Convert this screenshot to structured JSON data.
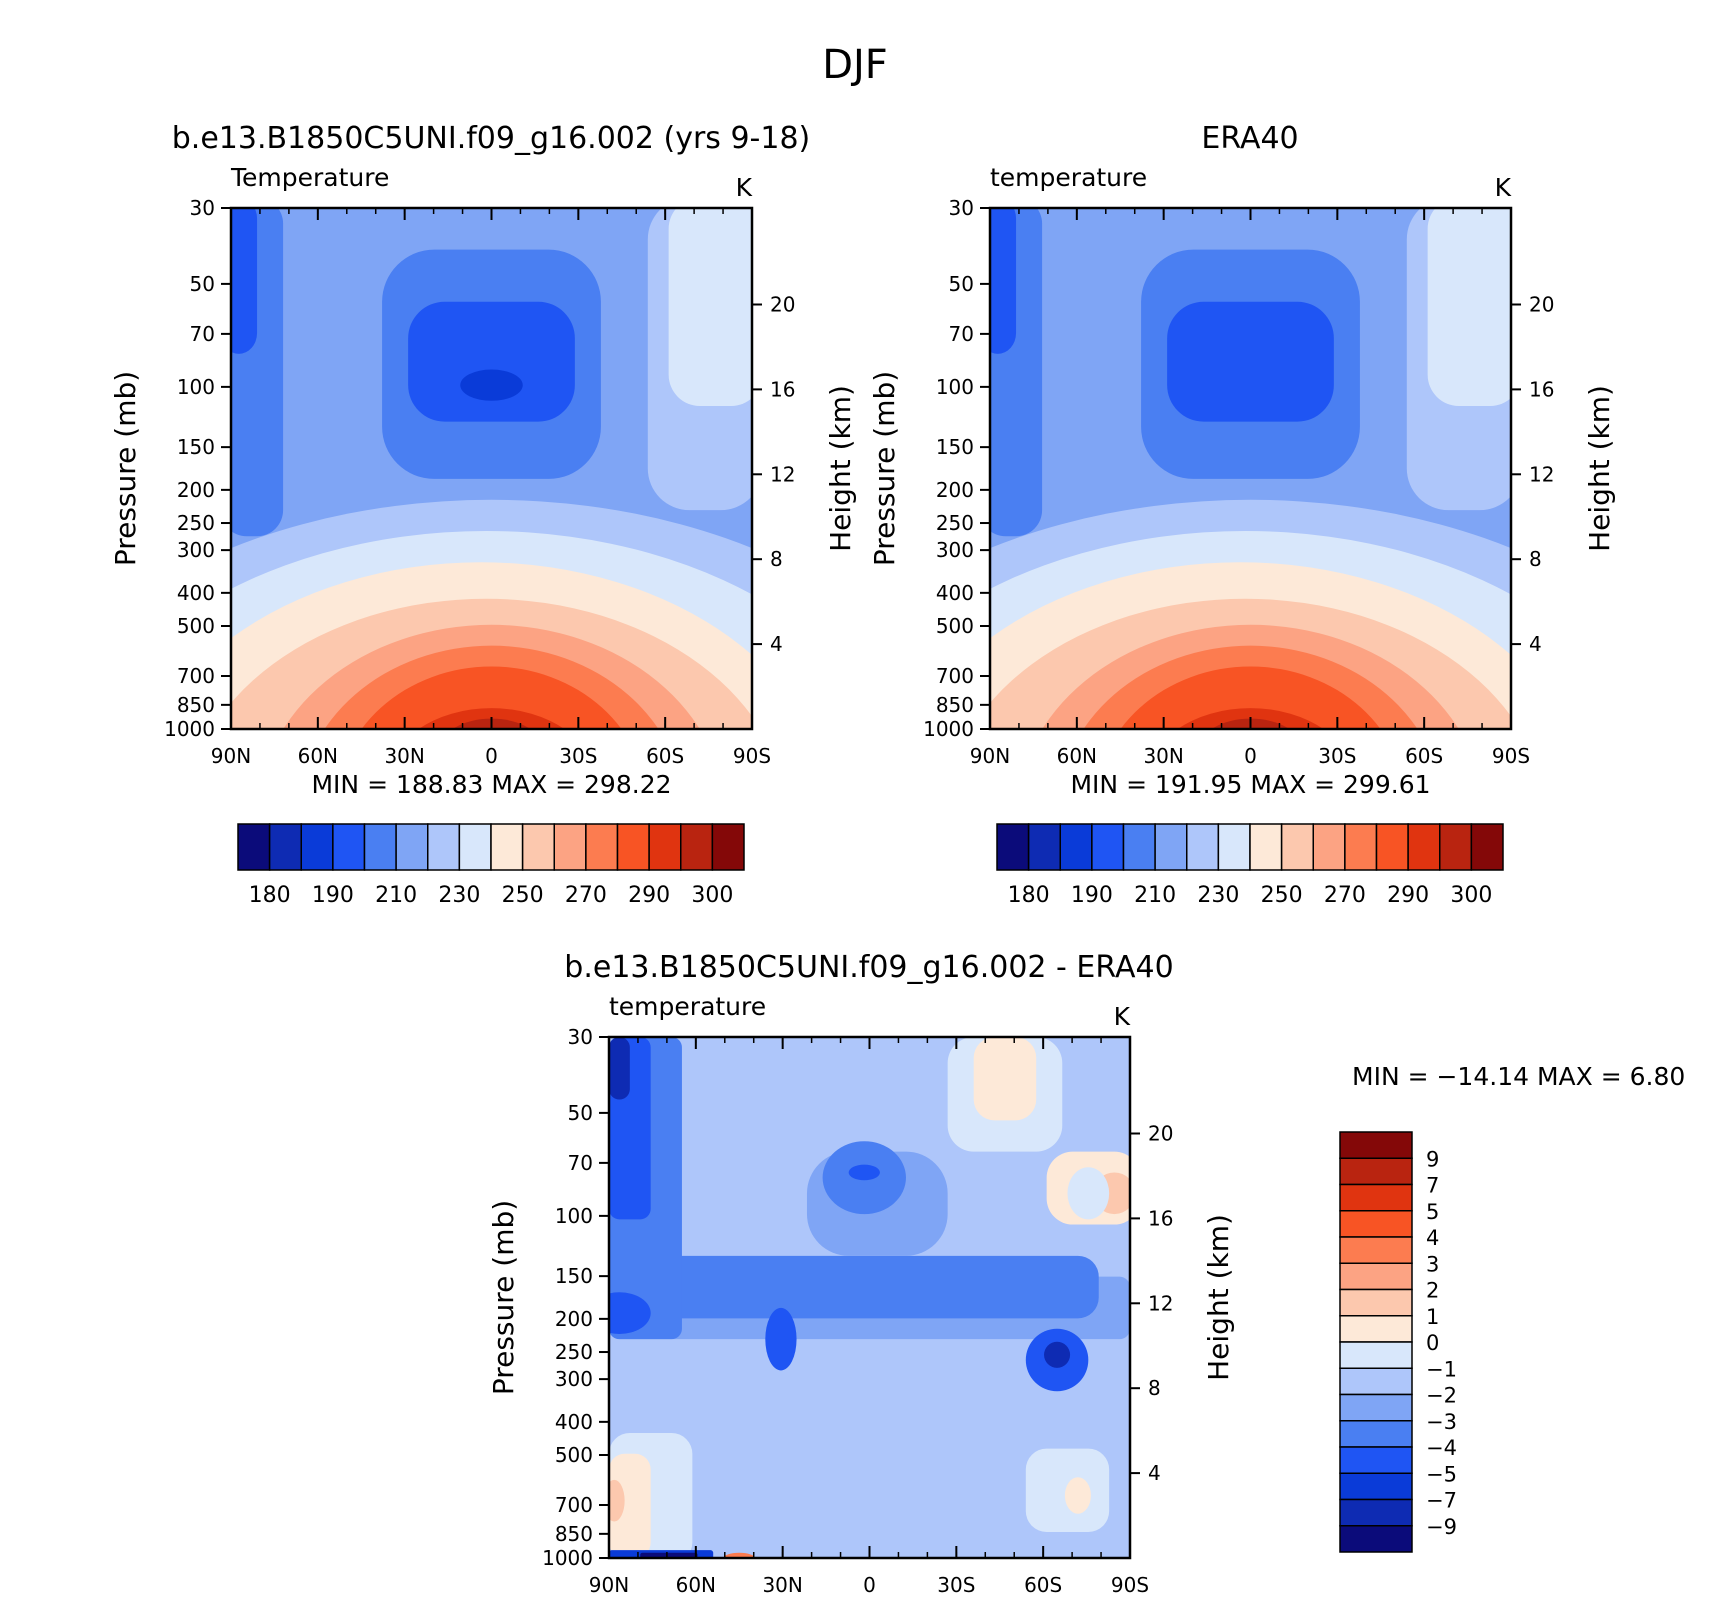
{
  "page": {
    "title": "DJF"
  },
  "colors": {
    "abs": [
      "#0b0b7a",
      "#0e2bb3",
      "#0a3bd8",
      "#1f55f3",
      "#4a7ff2",
      "#7fa5f5",
      "#aec6fa",
      "#d8e7fb",
      "#fde9d8",
      "#fcc8ae",
      "#fca383",
      "#fc7c50",
      "#f85424",
      "#e03410",
      "#b92410",
      "#840808"
    ],
    "diff": [
      "#0b0b7a",
      "#0e2bb3",
      "#0a3bd8",
      "#1f55f3",
      "#4a7ff2",
      "#7fa5f5",
      "#aec6fa",
      "#d8e7fb",
      "#fde9d8",
      "#fcc8ae",
      "#fca383",
      "#fc7c50",
      "#f85424",
      "#e03410",
      "#b92410",
      "#840808"
    ]
  },
  "chart_data": [
    {
      "type": "heatmap",
      "id": "model",
      "title": "b.e13.B1850C5UNI.f09_g16.002 (yrs 9-18)",
      "left_label": "Temperature",
      "units": "K",
      "xlabel": "",
      "ylabel": "Pressure (mb)",
      "y2label": "Height (km)",
      "x_ticks": [
        "90N",
        "60N",
        "30N",
        "0",
        "30S",
        "60S",
        "90S"
      ],
      "y_ticks": [
        "30",
        "50",
        "70",
        "100",
        "150",
        "200",
        "250",
        "300",
        "400",
        "500",
        "700",
        "850",
        "1000"
      ],
      "y2_ticks": [
        "20",
        "16",
        "12",
        "8",
        "4"
      ],
      "stats": "MIN = 188.83   MAX = 298.22",
      "colorbar_labels": [
        "180",
        "190",
        "210",
        "230",
        "250",
        "270",
        "290",
        "300"
      ]
    },
    {
      "type": "heatmap",
      "id": "obs",
      "title": "ERA40",
      "left_label": "temperature",
      "units": "K",
      "xlabel": "",
      "ylabel": "Pressure (mb)",
      "y2label": "Height (km)",
      "x_ticks": [
        "90N",
        "60N",
        "30N",
        "0",
        "30S",
        "60S",
        "90S"
      ],
      "y_ticks": [
        "30",
        "50",
        "70",
        "100",
        "150",
        "200",
        "250",
        "300",
        "400",
        "500",
        "700",
        "850",
        "1000"
      ],
      "y2_ticks": [
        "20",
        "16",
        "12",
        "8",
        "4"
      ],
      "stats": "MIN = 191.95   MAX = 299.61",
      "colorbar_labels": [
        "180",
        "190",
        "210",
        "230",
        "250",
        "270",
        "290",
        "300"
      ]
    },
    {
      "type": "heatmap",
      "id": "diff",
      "title": "b.e13.B1850C5UNI.f09_g16.002 - ERA40",
      "left_label": "temperature",
      "units": "K",
      "xlabel": "",
      "ylabel": "Pressure (mb)",
      "y2label": "Height (km)",
      "x_ticks": [
        "90N",
        "60N",
        "30N",
        "0",
        "30S",
        "60S",
        "90S"
      ],
      "y_ticks": [
        "30",
        "50",
        "70",
        "100",
        "150",
        "200",
        "250",
        "300",
        "400",
        "500",
        "700",
        "850",
        "1000"
      ],
      "y2_ticks": [
        "20",
        "16",
        "12",
        "8",
        "4"
      ],
      "stats": "MIN = −14.14   MAX =    6.80",
      "colorbar_labels": [
        "9",
        "7",
        "5",
        "4",
        "3",
        "2",
        "1",
        "0",
        "−1",
        "−2",
        "−3",
        "−4",
        "−5",
        "−7",
        "−9"
      ]
    }
  ]
}
